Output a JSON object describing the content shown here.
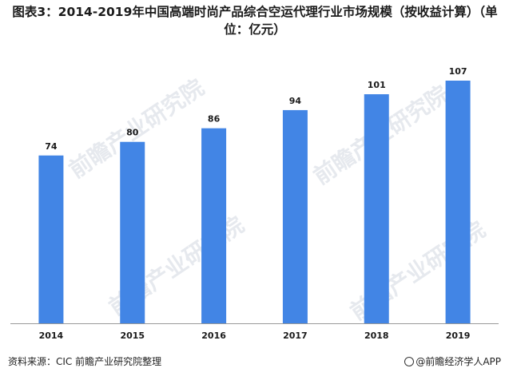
{
  "title": "图表3：2014-2019年中国高端时尚产品综合空运代理行业市场规模（按收益计算）（单位：亿元）",
  "source": "资料来源：CIC 前瞻产业研究院整理",
  "brand": "@前瞻经济学人APP",
  "watermark": "前瞻产业研究院",
  "colors": {
    "bar": "#4285e5",
    "axis": "#9a9a9a",
    "text": "#1a1a1a"
  },
  "chart_data": {
    "type": "bar",
    "categories": [
      "2014",
      "2015",
      "2016",
      "2017",
      "2018",
      "2019"
    ],
    "values": [
      74,
      80,
      86,
      94,
      101,
      107
    ],
    "data_labels": [
      "74",
      "80",
      "86",
      "94",
      "101",
      "107"
    ],
    "title": "图表3：2014-2019年中国高端时尚产品综合空运代理行业市场规模（按收益计算）（单位：亿元）",
    "xlabel": "",
    "ylabel": "",
    "ylim": [
      0,
      120
    ],
    "grid": false,
    "legend": "none"
  }
}
